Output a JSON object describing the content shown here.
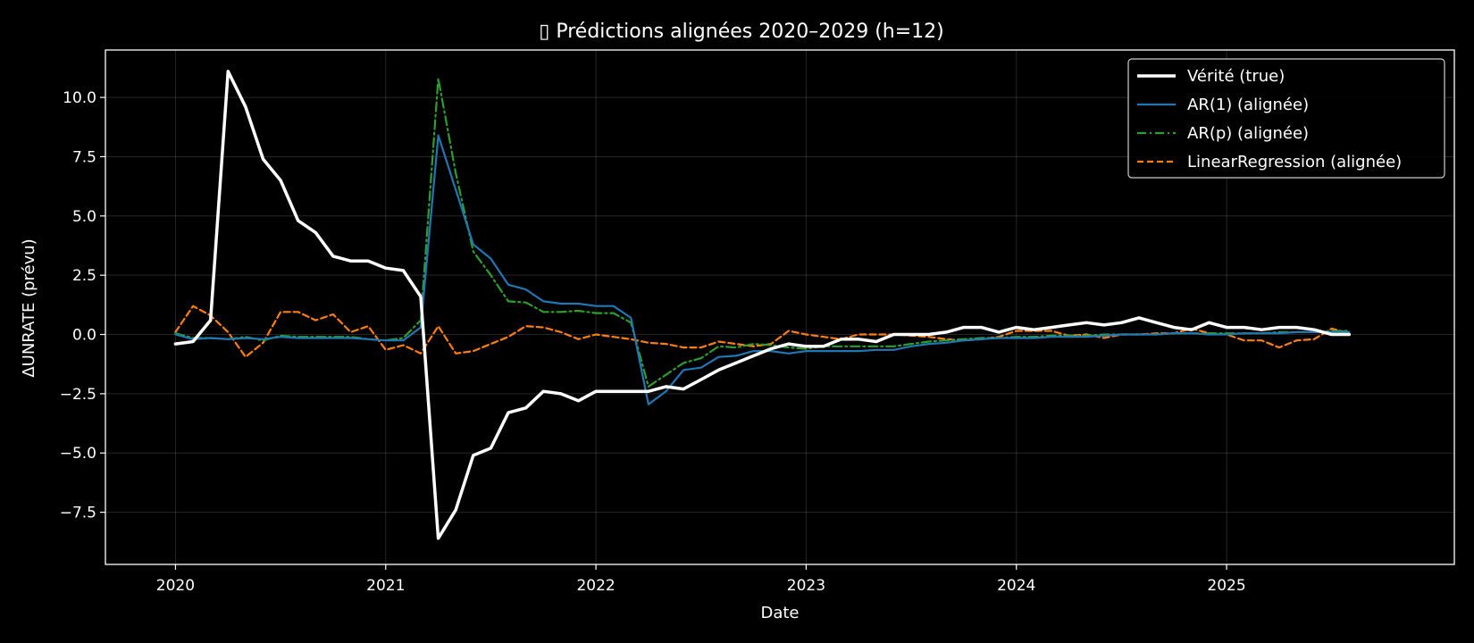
{
  "chart_data": {
    "type": "line",
    "title": "▯ Prédictions alignées 2020–2029 (h=12)",
    "xlabel": "Date",
    "ylabel": "ΔUNRATE (prévu)",
    "xlim": [
      "2019-09",
      "2026-02"
    ],
    "ylim": [
      -9.7,
      12.0
    ],
    "x_ticks": [
      "2020",
      "2021",
      "2022",
      "2023",
      "2024",
      "2025"
    ],
    "y_ticks": [
      -7.5,
      -5.0,
      -2.5,
      0.0,
      2.5,
      5.0,
      7.5,
      10.0
    ],
    "y_tick_labels": [
      "−7.5",
      "−5.0",
      "−2.5",
      "0.0",
      "2.5",
      "5.0",
      "7.5",
      "10.0"
    ],
    "grid": true,
    "legend_position": "top-right",
    "x": [
      "2020-01",
      "2020-02",
      "2020-03",
      "2020-04",
      "2020-05",
      "2020-06",
      "2020-07",
      "2020-08",
      "2020-09",
      "2020-10",
      "2020-11",
      "2020-12",
      "2021-01",
      "2021-02",
      "2021-03",
      "2021-04",
      "2021-05",
      "2021-06",
      "2021-07",
      "2021-08",
      "2021-09",
      "2021-10",
      "2021-11",
      "2021-12",
      "2022-01",
      "2022-02",
      "2022-03",
      "2022-04",
      "2022-05",
      "2022-06",
      "2022-07",
      "2022-08",
      "2022-09",
      "2022-10",
      "2022-11",
      "2022-12",
      "2023-01",
      "2023-02",
      "2023-03",
      "2023-04",
      "2023-05",
      "2023-06",
      "2023-07",
      "2023-08",
      "2023-09",
      "2023-10",
      "2023-11",
      "2023-12",
      "2024-01",
      "2024-02",
      "2024-03",
      "2024-04",
      "2024-05",
      "2024-06",
      "2024-07",
      "2024-08",
      "2024-09",
      "2024-10",
      "2024-11",
      "2024-12",
      "2025-01",
      "2025-02",
      "2025-03",
      "2025-04",
      "2025-05",
      "2025-06",
      "2025-07",
      "2025-08"
    ],
    "series": [
      {
        "name": "Vérité (true)",
        "color": "#ffffff",
        "style": "solid-thick",
        "values": [
          -0.4,
          -0.3,
          0.6,
          11.1,
          9.6,
          7.4,
          6.5,
          4.8,
          4.3,
          3.3,
          3.1,
          3.1,
          2.8,
          2.7,
          1.6,
          -8.6,
          -7.4,
          -5.1,
          -4.8,
          -3.3,
          -3.1,
          -2.4,
          -2.5,
          -2.8,
          -2.4,
          -2.4,
          -2.4,
          -2.4,
          -2.2,
          -2.3,
          -1.9,
          -1.5,
          -1.2,
          -0.9,
          -0.6,
          -0.4,
          -0.5,
          -0.5,
          -0.2,
          -0.2,
          -0.3,
          0.0,
          0.0,
          0.0,
          0.1,
          0.3,
          0.3,
          0.1,
          0.3,
          0.2,
          0.3,
          0.4,
          0.5,
          0.4,
          0.5,
          0.7,
          0.5,
          0.3,
          0.2,
          0.5,
          0.3,
          0.3,
          0.2,
          0.3,
          0.3,
          0.2,
          0.0,
          0.0
        ]
      },
      {
        "name": "AR(1) (alignée)",
        "color": "#1f77b4",
        "style": "solid",
        "values": [
          0.0,
          -0.2,
          -0.15,
          -0.2,
          -0.15,
          -0.2,
          -0.1,
          -0.15,
          -0.15,
          -0.15,
          -0.15,
          -0.2,
          -0.25,
          -0.25,
          0.3,
          8.4,
          6.1,
          3.8,
          3.2,
          2.1,
          1.9,
          1.4,
          1.3,
          1.3,
          1.2,
          1.2,
          0.7,
          -2.95,
          -2.4,
          -1.5,
          -1.4,
          -0.95,
          -0.9,
          -0.7,
          -0.7,
          -0.8,
          -0.7,
          -0.7,
          -0.7,
          -0.7,
          -0.65,
          -0.65,
          -0.5,
          -0.4,
          -0.35,
          -0.25,
          -0.2,
          -0.15,
          -0.15,
          -0.15,
          -0.1,
          -0.1,
          -0.1,
          -0.05,
          0.0,
          0.0,
          0.0,
          0.05,
          0.05,
          0.0,
          0.0,
          0.05,
          0.05,
          0.05,
          0.1,
          0.1,
          0.1,
          0.1
        ]
      },
      {
        "name": "AR(p) (alignée)",
        "color": "#2ca02c",
        "style": "dashdot",
        "values": [
          0.05,
          -0.15,
          -0.15,
          -0.2,
          -0.1,
          -0.25,
          -0.05,
          -0.1,
          -0.1,
          -0.1,
          -0.1,
          -0.2,
          -0.25,
          -0.15,
          0.6,
          10.8,
          6.8,
          3.5,
          2.5,
          1.4,
          1.35,
          0.95,
          0.95,
          1.0,
          0.9,
          0.9,
          0.5,
          -2.2,
          -1.7,
          -1.2,
          -1.0,
          -0.5,
          -0.55,
          -0.4,
          -0.45,
          -0.55,
          -0.6,
          -0.5,
          -0.5,
          -0.5,
          -0.5,
          -0.5,
          -0.4,
          -0.3,
          -0.25,
          -0.2,
          -0.15,
          -0.15,
          -0.1,
          -0.1,
          -0.05,
          -0.05,
          -0.05,
          0.0,
          0.0,
          0.0,
          0.0,
          0.05,
          0.05,
          0.05,
          0.05,
          0.05,
          0.05,
          0.1,
          0.1,
          0.1,
          0.15,
          0.15
        ]
      },
      {
        "name": "LinearRegression (alignée)",
        "color": "#ff7f0e",
        "style": "dashed",
        "values": [
          0.1,
          1.2,
          0.8,
          0.1,
          -0.95,
          -0.35,
          0.95,
          0.95,
          0.6,
          0.85,
          0.1,
          0.35,
          -0.65,
          -0.45,
          -0.8,
          0.35,
          -0.8,
          -0.7,
          -0.4,
          -0.1,
          0.35,
          0.3,
          0.1,
          -0.2,
          0.0,
          -0.1,
          -0.2,
          -0.35,
          -0.4,
          -0.55,
          -0.55,
          -0.3,
          -0.4,
          -0.5,
          -0.4,
          0.15,
          0.0,
          -0.1,
          -0.2,
          0.0,
          0.0,
          0.0,
          -0.05,
          -0.1,
          -0.2,
          -0.25,
          -0.2,
          -0.1,
          0.15,
          0.15,
          0.15,
          -0.05,
          0.0,
          -0.15,
          0.0,
          0.0,
          0.05,
          0.05,
          0.25,
          0.05,
          0.0,
          -0.25,
          -0.25,
          -0.55,
          -0.25,
          -0.2,
          0.25,
          0.05
        ]
      }
    ]
  }
}
